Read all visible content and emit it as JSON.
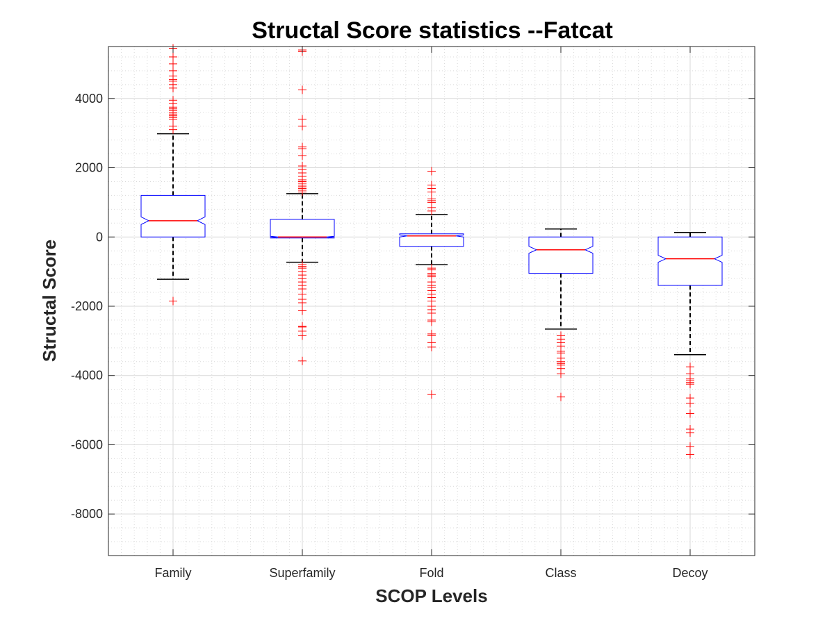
{
  "chart_data": {
    "type": "box",
    "title": "Structal Score statistics --Fatcat",
    "xlabel": "SCOP Levels",
    "ylabel": "Structal Score",
    "ylim": [
      -9200,
      5500
    ],
    "yticks": [
      -8000,
      -6000,
      -4000,
      -2000,
      0,
      2000,
      4000
    ],
    "ytick_labels": [
      "-8000",
      "-6000",
      "-4000",
      "-2000",
      "0",
      "2000",
      "4000"
    ],
    "grid": true,
    "minor_grid": true,
    "notched": true,
    "colors": {
      "box": "#0000ff",
      "median": "#ff0000",
      "whisker": "#000000",
      "outlier": "#ff0000",
      "grid": "#d9d9d9"
    },
    "categories": [
      "Family",
      "Superfamily",
      "Fold",
      "Class",
      "Decoy"
    ],
    "boxes": [
      {
        "name": "Family",
        "whisker_low": -1220,
        "q1": 0,
        "median": 470,
        "q3": 1200,
        "whisker_high": 2980,
        "notch_low": 360,
        "notch_high": 580,
        "outliers": [
          -1850,
          3100,
          3200,
          3400,
          3450,
          3500,
          3550,
          3600,
          3650,
          3700,
          3750,
          3850,
          3950,
          4300,
          4400,
          4500,
          4550,
          4650,
          4800,
          5000,
          5200,
          5450
        ]
      },
      {
        "name": "Superfamily",
        "whisker_low": -730,
        "q1": -30,
        "median": 0,
        "q3": 510,
        "whisker_high": 1250,
        "notch_low": -20,
        "notch_high": 20,
        "outliers": [
          -3580,
          -2850,
          -2720,
          -2600,
          -2580,
          -2130,
          -1900,
          -1800,
          -1650,
          -1500,
          -1400,
          -1300,
          -1200,
          -1100,
          -1000,
          -900,
          -850,
          -800,
          1300,
          1350,
          1400,
          1450,
          1500,
          1550,
          1600,
          1650,
          1750,
          1850,
          1950,
          2050,
          2350,
          2550,
          2600,
          3200,
          3400,
          4250,
          5350,
          5400
        ]
      },
      {
        "name": "Fold",
        "whisker_low": -800,
        "q1": -270,
        "median": 30,
        "q3": 90,
        "whisker_high": 650,
        "notch_low": 0,
        "notch_high": 60,
        "outliers": [
          -4550,
          -3180,
          -3050,
          -2850,
          -2800,
          -2450,
          -2400,
          -2200,
          -2100,
          -2000,
          -1850,
          -1750,
          -1650,
          -1550,
          -1450,
          -1400,
          -1300,
          -1150,
          -1100,
          -1050,
          -950,
          -900,
          750,
          850,
          1000,
          1050,
          1100,
          1300,
          1400,
          1500,
          1900
        ]
      },
      {
        "name": "Class",
        "whisker_low": -2660,
        "q1": -1050,
        "median": -370,
        "q3": 0,
        "whisker_high": 230,
        "notch_low": -470,
        "notch_high": -270,
        "outliers": [
          -4620,
          -3950,
          -3800,
          -3700,
          -3650,
          -3600,
          -3500,
          -3350,
          -3300,
          -3150,
          -3050,
          -2950,
          -2850
        ]
      },
      {
        "name": "Decoy",
        "whisker_low": -3400,
        "q1": -1400,
        "median": -630,
        "q3": 0,
        "whisker_high": 130,
        "notch_low": -730,
        "notch_high": -530,
        "outliers": [
          -6280,
          -6050,
          -5650,
          -5550,
          -5100,
          -4800,
          -4650,
          -4250,
          -4200,
          -4150,
          -4100,
          -3950,
          -3750
        ]
      }
    ]
  }
}
